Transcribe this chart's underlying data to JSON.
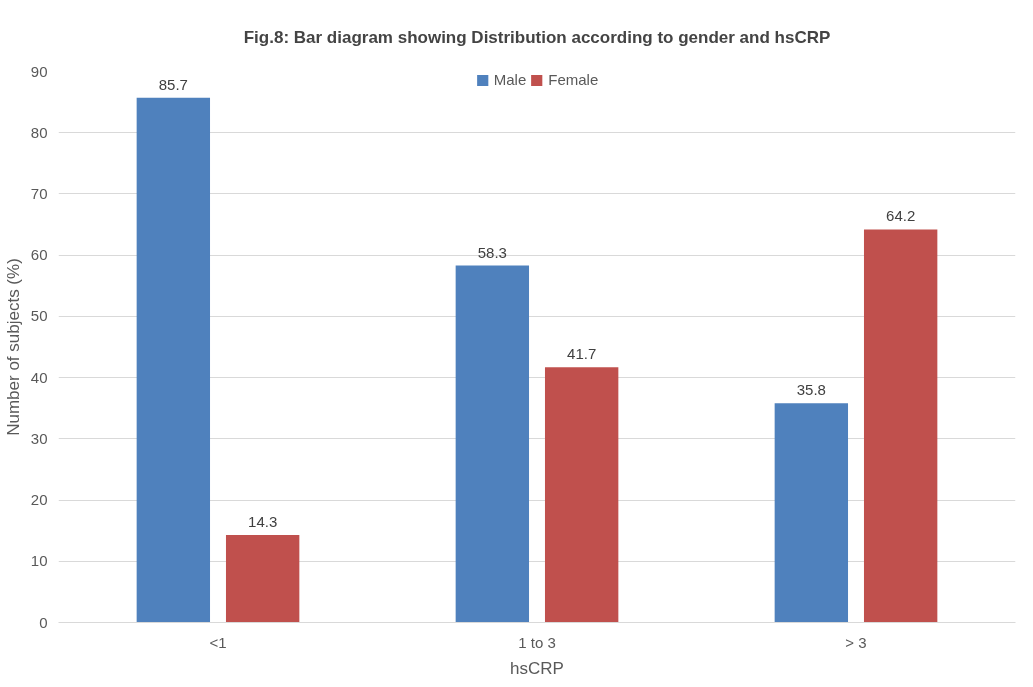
{
  "chart_data": {
    "type": "bar",
    "title": "Fig.8: Bar diagram showing Distribution according to gender and hsCRP",
    "xlabel": "hsCRP",
    "ylabel": "Number of subjects (%)",
    "categories": [
      "<1",
      "1 to 3",
      "> 3"
    ],
    "series": [
      {
        "name": "Male",
        "color": "#4f81bd",
        "values": [
          85.7,
          58.3,
          35.8
        ]
      },
      {
        "name": "Female",
        "color": "#c0504d",
        "values": [
          14.3,
          41.7,
          64.2
        ]
      }
    ],
    "ylim": [
      0,
      90
    ],
    "yticks": [
      0,
      10,
      20,
      30,
      40,
      50,
      60,
      70,
      80,
      90
    ],
    "grid": "y",
    "legend": "top",
    "data_labels": true
  }
}
